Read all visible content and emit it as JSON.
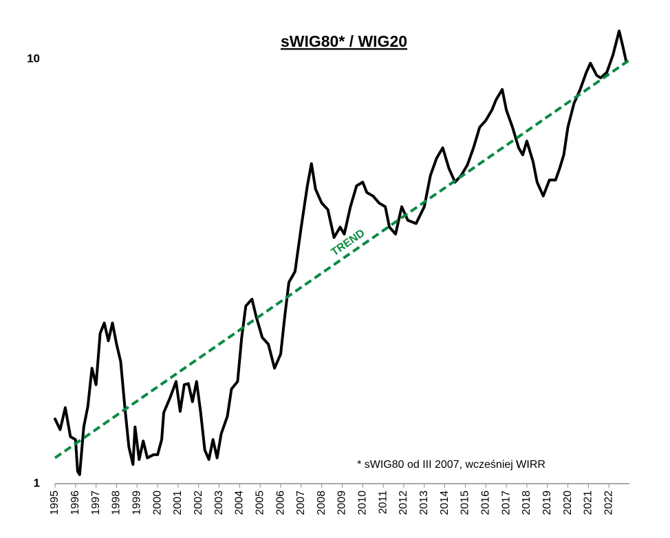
{
  "chart_data": {
    "type": "line",
    "title": "sWIG80* / WIG20",
    "annotations": [
      "* sWIG80 od III 2007, wcześniej WIRR"
    ],
    "log_scale_y": true,
    "grid": false,
    "xlim": [
      1995,
      2023
    ],
    "xticks": [
      1995,
      1996,
      1997,
      1998,
      1999,
      2000,
      2001,
      2002,
      2003,
      2004,
      2005,
      2006,
      2007,
      2008,
      2009,
      2010,
      2011,
      2012,
      2013,
      2014,
      2015,
      2016,
      2017,
      2018,
      2019,
      2020,
      2021,
      2022
    ],
    "ylim": [
      1,
      12
    ],
    "yticks": [
      1,
      10
    ],
    "series": [
      {
        "color": "#000000",
        "style": "solid",
        "x": [
          1995.0,
          1995.25,
          1995.5,
          1995.75,
          1996.0,
          1996.1,
          1996.2,
          1996.4,
          1996.6,
          1996.8,
          1997.0,
          1997.2,
          1997.4,
          1997.6,
          1997.8,
          1998.0,
          1998.2,
          1998.4,
          1998.6,
          1998.8,
          1998.9,
          1999.1,
          1999.3,
          1999.5,
          1999.8,
          2000.0,
          2000.2,
          2000.3,
          2000.6,
          2000.9,
          2001.1,
          2001.3,
          2001.5,
          2001.7,
          2001.9,
          2002.1,
          2002.3,
          2002.5,
          2002.7,
          2002.9,
          2003.1,
          2003.4,
          2003.6,
          2003.9,
          2004.1,
          2004.3,
          2004.6,
          2004.8,
          2005.1,
          2005.4,
          2005.7,
          2006.0,
          2006.2,
          2006.4,
          2006.7,
          2007.0,
          2007.3,
          2007.5,
          2007.7,
          2008.0,
          2008.3,
          2008.6,
          2008.9,
          2009.1,
          2009.4,
          2009.7,
          2010.0,
          2010.2,
          2010.5,
          2010.8,
          2011.1,
          2011.3,
          2011.6,
          2011.9,
          2012.2,
          2012.6,
          2013.0,
          2013.3,
          2013.6,
          2013.9,
          2014.2,
          2014.5,
          2014.8,
          2015.1,
          2015.4,
          2015.7,
          2016.0,
          2016.3,
          2016.5,
          2016.8,
          2017.0,
          2017.3,
          2017.6,
          2017.8,
          2018.0,
          2018.3,
          2018.5,
          2018.8,
          2019.1,
          2019.4,
          2019.6,
          2019.8,
          2020.0,
          2020.3,
          2020.6,
          2020.9,
          2021.1,
          2021.4,
          2021.6,
          2021.9,
          2022.2,
          2022.5,
          2022.7,
          2022.85
        ],
        "values": [
          1.42,
          1.34,
          1.51,
          1.29,
          1.27,
          1.07,
          1.05,
          1.36,
          1.52,
          1.87,
          1.71,
          2.26,
          2.39,
          2.17,
          2.39,
          2.13,
          1.94,
          1.52,
          1.22,
          1.11,
          1.36,
          1.14,
          1.26,
          1.15,
          1.17,
          1.17,
          1.27,
          1.47,
          1.59,
          1.74,
          1.48,
          1.71,
          1.72,
          1.56,
          1.74,
          1.47,
          1.2,
          1.14,
          1.27,
          1.15,
          1.31,
          1.44,
          1.67,
          1.74,
          2.21,
          2.62,
          2.72,
          2.48,
          2.21,
          2.13,
          1.87,
          2.02,
          2.48,
          2.98,
          3.16,
          4.02,
          5.03,
          5.67,
          4.94,
          4.58,
          4.42,
          3.8,
          4.02,
          3.87,
          4.49,
          5.03,
          5.13,
          4.85,
          4.76,
          4.58,
          4.49,
          4.02,
          3.87,
          4.49,
          4.17,
          4.1,
          4.49,
          5.32,
          5.84,
          6.18,
          5.53,
          5.13,
          5.32,
          5.63,
          6.18,
          6.91,
          7.17,
          7.59,
          8.02,
          8.48,
          7.59,
          6.91,
          6.18,
          5.95,
          6.41,
          5.74,
          5.13,
          4.76,
          5.19,
          5.19,
          5.53,
          5.95,
          6.91,
          7.87,
          8.48,
          9.31,
          9.78,
          9.16,
          9.03,
          9.31,
          10.23,
          11.65,
          10.61,
          9.83
        ]
      },
      {
        "name": "TREND",
        "color": "#0a8a44",
        "style": "dashed",
        "x": [
          1995,
          2023
        ],
        "values": [
          1.15,
          9.95
        ]
      }
    ]
  }
}
